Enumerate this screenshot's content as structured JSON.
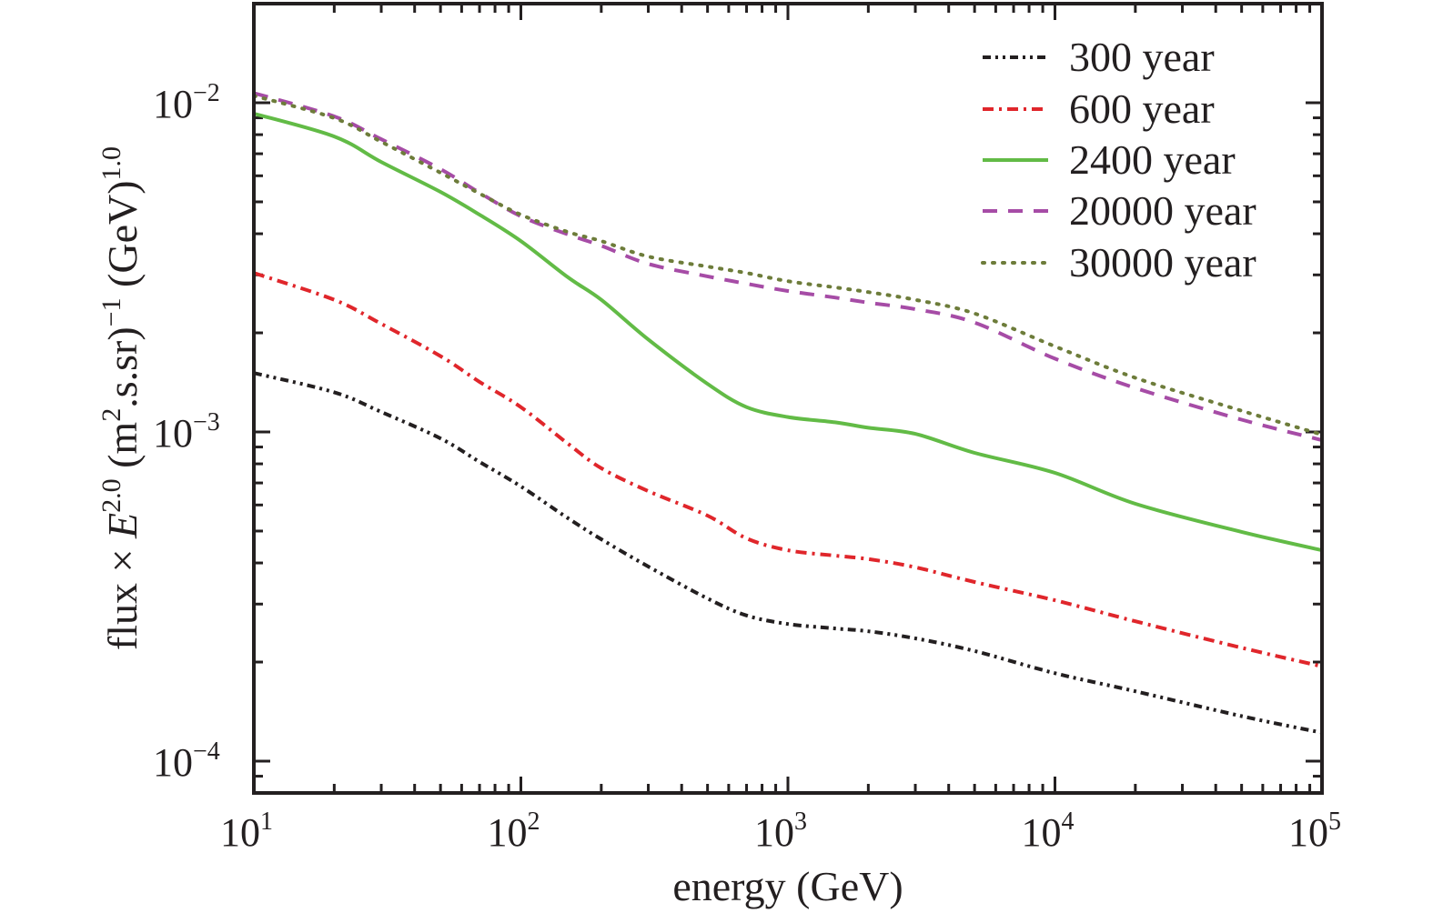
{
  "chart_data": {
    "type": "line",
    "title": "",
    "xlabel": "energy (GeV)",
    "ylabel": {
      "prefix": "flux × ",
      "E": "E",
      "E_exp": "2.0",
      "unit1": " (m",
      "unit1_exp": "2",
      "unit2": ".s.sr)",
      "unit2_exp": "−1",
      "unit3": " (GeV)",
      "unit3_exp": "1.0"
    },
    "xscale": "log",
    "yscale": "log",
    "xlim": [
      10,
      100000
    ],
    "ylim": [
      8e-05,
      0.02
    ],
    "grid": false,
    "legend_position": "top-right",
    "x_ticks": [
      {
        "value": 10,
        "base": "10",
        "exp": "1"
      },
      {
        "value": 100,
        "base": "10",
        "exp": "2"
      },
      {
        "value": 1000,
        "base": "10",
        "exp": "3"
      },
      {
        "value": 10000,
        "base": "10",
        "exp": "4"
      },
      {
        "value": 100000,
        "base": "10",
        "exp": "5"
      }
    ],
    "y_ticks": [
      {
        "value": 0.01,
        "base": "10",
        "exp": "−2"
      },
      {
        "value": 0.001,
        "base": "10",
        "exp": "−3"
      },
      {
        "value": 0.0001,
        "base": "10",
        "exp": "−4"
      }
    ],
    "x": [
      10,
      20,
      30,
      50,
      70,
      100,
      150,
      200,
      300,
      500,
      700,
      1000,
      1500,
      2000,
      3000,
      5000,
      10000,
      20000,
      50000,
      100000
    ],
    "series": [
      {
        "name": "300 year",
        "color": "#231f20",
        "dash": "dash-dot-dot",
        "values": [
          0.00151,
          0.00132,
          0.00115,
          0.000956,
          0.000811,
          0.000683,
          0.000547,
          0.000472,
          0.00039,
          0.000312,
          0.000277,
          0.000261,
          0.000253,
          0.000248,
          0.000236,
          0.000216,
          0.000185,
          0.000163,
          0.000137,
          0.000122
        ]
      },
      {
        "name": "600 year",
        "color": "#e0262b",
        "dash": "dash-dot",
        "values": [
          0.00304,
          0.00252,
          0.00213,
          0.0017,
          0.00142,
          0.00119,
          0.000921,
          0.000776,
          0.000661,
          0.000557,
          0.000475,
          0.000437,
          0.000421,
          0.000411,
          0.000388,
          0.00035,
          0.000308,
          0.000266,
          0.000221,
          0.000194
        ]
      },
      {
        "name": "2400 year",
        "color": "#62bb46",
        "dash": "solid",
        "values": [
          0.00927,
          0.0079,
          0.00661,
          0.00536,
          0.00457,
          0.0038,
          0.00295,
          0.00252,
          0.00191,
          0.0014,
          0.00119,
          0.00111,
          0.00107,
          0.00103,
          0.000987,
          0.000864,
          0.000751,
          0.000605,
          0.000497,
          0.000437
        ]
      },
      {
        "name": "20000 year",
        "color": "#a64ca6",
        "dash": "dashed",
        "values": [
          0.0107,
          0.00909,
          0.00775,
          0.00629,
          0.00533,
          0.00452,
          0.00398,
          0.00368,
          0.00324,
          0.00297,
          0.00282,
          0.00268,
          0.00256,
          0.00247,
          0.00236,
          0.00215,
          0.00167,
          0.00136,
          0.00109,
          0.000944
        ]
      },
      {
        "name": "30000 year",
        "color": "#6d7c3a",
        "dash": "dotted",
        "values": [
          0.0105,
          0.00898,
          0.00761,
          0.00613,
          0.0053,
          0.00457,
          0.00405,
          0.0038,
          0.00341,
          0.00318,
          0.00304,
          0.00287,
          0.00275,
          0.00266,
          0.00252,
          0.00229,
          0.00182,
          0.00146,
          0.00116,
          0.000981
        ]
      }
    ]
  }
}
